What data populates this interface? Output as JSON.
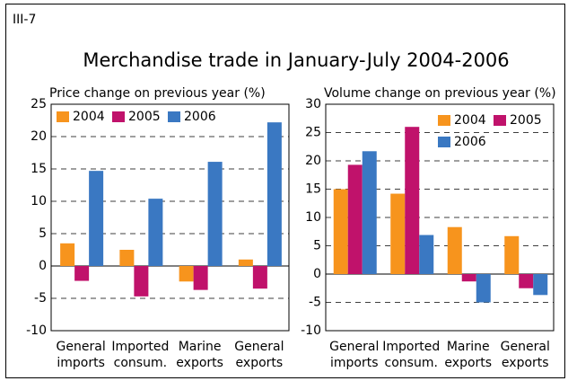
{
  "figure_label": "III-7",
  "title": "Merchandise trade in January-July 2004-2006",
  "chart_data": [
    {
      "type": "bar",
      "title": "Price change on previous year (%)",
      "categories": [
        [
          "General",
          "imports"
        ],
        [
          "Imported",
          "consum."
        ],
        [
          "Marine",
          "exports"
        ],
        [
          "General",
          "exports"
        ]
      ],
      "series": [
        {
          "name": "2004",
          "color": "#f7941d",
          "values": [
            3.5,
            2.5,
            -2.4,
            1.0
          ]
        },
        {
          "name": "2005",
          "color": "#c0126b",
          "values": [
            -2.3,
            -4.7,
            -3.7,
            -3.5
          ]
        },
        {
          "name": "2006",
          "color": "#3a78c2",
          "values": [
            14.7,
            10.4,
            16.1,
            22.2
          ]
        }
      ],
      "ylim": [
        -10,
        25
      ],
      "yticks": [
        -10,
        -5,
        0,
        5,
        10,
        15,
        20,
        25
      ],
      "grid": true,
      "legend": "upper left"
    },
    {
      "type": "bar",
      "title": "Volume change on previous year (%)",
      "categories": [
        [
          "General",
          "imports"
        ],
        [
          "Imported",
          "consum."
        ],
        [
          "Marine",
          "exports"
        ],
        [
          "General",
          "exports"
        ]
      ],
      "series": [
        {
          "name": "2004",
          "color": "#f7941d",
          "values": [
            15.0,
            14.2,
            8.3,
            6.7
          ]
        },
        {
          "name": "2005",
          "color": "#c0126b",
          "values": [
            19.3,
            26.0,
            -1.3,
            -2.5
          ]
        },
        {
          "name": "2006",
          "color": "#3a78c2",
          "values": [
            21.7,
            6.9,
            -5.0,
            -3.7
          ]
        }
      ],
      "ylim": [
        -10,
        30
      ],
      "yticks": [
        -10,
        -5,
        0,
        5,
        10,
        15,
        20,
        25,
        30
      ],
      "grid": true,
      "legend": "upper right"
    }
  ]
}
